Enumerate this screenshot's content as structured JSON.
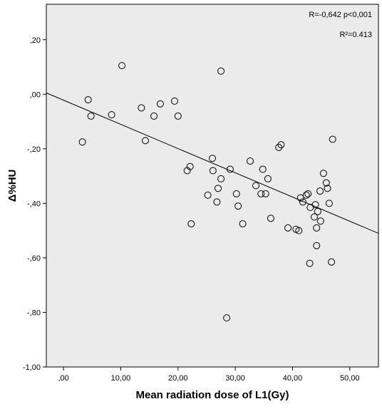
{
  "chart_data": {
    "type": "scatter",
    "title": "",
    "xlabel": "Mean radiation dose of L1(Gy)",
    "ylabel": "Δ%HU",
    "xlim": [
      -3,
      55
    ],
    "ylim": [
      -1.0,
      0.33
    ],
    "xticks": [
      0,
      10,
      20,
      30,
      40,
      50
    ],
    "xtick_labels": [
      ",00",
      "10,00",
      "20,00",
      "30,00",
      "40,00",
      "50,00"
    ],
    "yticks": [
      0.2,
      0.0,
      -0.2,
      -0.4,
      -0.6,
      -0.8,
      -1.0
    ],
    "ytick_labels": [
      ",20",
      ",00",
      "-,20",
      "-,40",
      "-,60",
      "-,80",
      "-1,00"
    ],
    "grid": false,
    "background": "#ebebeb",
    "annotations": {
      "r_text": "R=-0,642  p<0,001",
      "r2_text": "R²=0.413"
    },
    "fit_line": {
      "x": [
        -3,
        55
      ],
      "y": [
        0.005,
        -0.51
      ]
    },
    "points": [
      {
        "x": 3.3,
        "y": -0.175
      },
      {
        "x": 4.3,
        "y": -0.02
      },
      {
        "x": 4.8,
        "y": -0.08
      },
      {
        "x": 8.4,
        "y": -0.075
      },
      {
        "x": 10.2,
        "y": 0.105
      },
      {
        "x": 13.6,
        "y": -0.05
      },
      {
        "x": 14.3,
        "y": -0.17
      },
      {
        "x": 15.8,
        "y": -0.08
      },
      {
        "x": 16.9,
        "y": -0.035
      },
      {
        "x": 19.4,
        "y": -0.025
      },
      {
        "x": 20.0,
        "y": -0.08
      },
      {
        "x": 21.6,
        "y": -0.28
      },
      {
        "x": 22.1,
        "y": -0.265
      },
      {
        "x": 22.3,
        "y": -0.475
      },
      {
        "x": 25.2,
        "y": -0.37
      },
      {
        "x": 26.0,
        "y": -0.235
      },
      {
        "x": 26.1,
        "y": -0.28
      },
      {
        "x": 26.8,
        "y": -0.395
      },
      {
        "x": 27.0,
        "y": -0.345
      },
      {
        "x": 27.5,
        "y": 0.085
      },
      {
        "x": 27.5,
        "y": -0.31
      },
      {
        "x": 28.5,
        "y": -0.82
      },
      {
        "x": 29.1,
        "y": -0.275
      },
      {
        "x": 30.2,
        "y": -0.365
      },
      {
        "x": 30.5,
        "y": -0.41
      },
      {
        "x": 31.3,
        "y": -0.475
      },
      {
        "x": 32.6,
        "y": -0.245
      },
      {
        "x": 33.6,
        "y": -0.335
      },
      {
        "x": 34.5,
        "y": -0.365
      },
      {
        "x": 34.8,
        "y": -0.275
      },
      {
        "x": 35.3,
        "y": -0.365
      },
      {
        "x": 35.7,
        "y": -0.31
      },
      {
        "x": 36.2,
        "y": -0.455
      },
      {
        "x": 37.6,
        "y": -0.195
      },
      {
        "x": 38.0,
        "y": -0.185
      },
      {
        "x": 39.2,
        "y": -0.49
      },
      {
        "x": 40.6,
        "y": -0.495
      },
      {
        "x": 41.1,
        "y": -0.5
      },
      {
        "x": 41.4,
        "y": -0.38
      },
      {
        "x": 41.8,
        "y": -0.395
      },
      {
        "x": 42.4,
        "y": -0.37
      },
      {
        "x": 42.7,
        "y": -0.365
      },
      {
        "x": 43.1,
        "y": -0.415
      },
      {
        "x": 43.0,
        "y": -0.62
      },
      {
        "x": 43.8,
        "y": -0.45
      },
      {
        "x": 44.0,
        "y": -0.405
      },
      {
        "x": 44.2,
        "y": -0.49
      },
      {
        "x": 44.2,
        "y": -0.555
      },
      {
        "x": 44.4,
        "y": -0.43
      },
      {
        "x": 44.8,
        "y": -0.355
      },
      {
        "x": 44.9,
        "y": -0.465
      },
      {
        "x": 45.4,
        "y": -0.29
      },
      {
        "x": 45.9,
        "y": -0.325
      },
      {
        "x": 46.1,
        "y": -0.345
      },
      {
        "x": 46.4,
        "y": -0.4
      },
      {
        "x": 46.8,
        "y": -0.615
      },
      {
        "x": 47.0,
        "y": -0.165
      }
    ]
  }
}
